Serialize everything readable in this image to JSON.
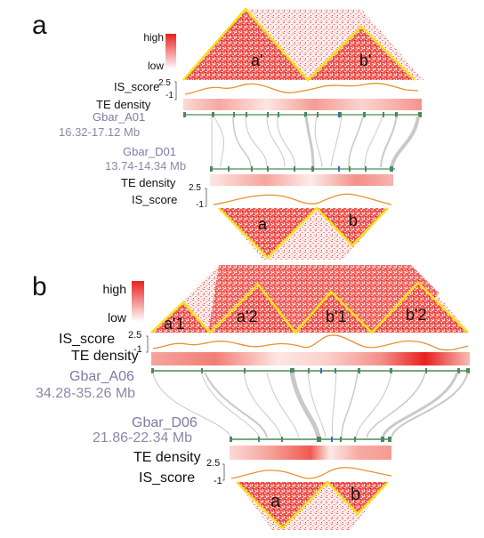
{
  "panels": [
    {
      "letter": "a",
      "colorbar": {
        "high": "high",
        "low": "low"
      },
      "top_domains": [
        "a'",
        "b'"
      ],
      "bottom_domains": [
        "a",
        "b"
      ],
      "is_score_label": "IS_score",
      "te_density_label": "TE density",
      "is_scale_max": "2.5",
      "is_scale_min": "-1",
      "top_genome": {
        "name": "Gbar_A01",
        "range": "16.32-17.12 Mb"
      },
      "bottom_genome": {
        "name": "Gbar_D01",
        "range": "13.74-14.34 Mb"
      }
    },
    {
      "letter": "b",
      "colorbar": {
        "high": "high",
        "low": "low"
      },
      "top_domains": [
        "a'1",
        "a'2",
        "b'1",
        "b'2"
      ],
      "bottom_domains": [
        "a",
        "b"
      ],
      "is_score_label": "IS_score",
      "te_density_label": "TE density",
      "is_scale_max": "2.5",
      "is_scale_min": "-1",
      "top_genome": {
        "name": "Gbar_A06",
        "range": "34.28-35.26 Mb"
      },
      "bottom_genome": {
        "name": "Gbar_D06",
        "range": "21.86-22.34 Mb"
      }
    }
  ],
  "colors": {
    "heatmap_red": "#e8201f",
    "domain_outline": "#f5e11b",
    "is_line": "#e8922a",
    "chrom_line": "#4a8a5a",
    "synteny": "#c9c9c9",
    "genome_label": "#7b7ba8"
  }
}
